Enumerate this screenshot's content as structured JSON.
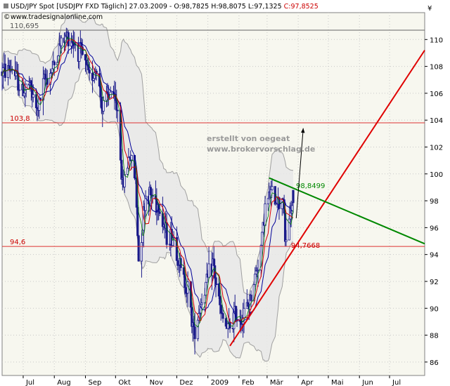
{
  "header": {
    "symbol_line": "USD/JPY Spot [USDJPY FXD  Täglich] 27.03.2009 - O:98,7825 H:98,8075 L:97,1325 ",
    "close_value": "C:97,8525",
    "website": "www.tradesignalonline.com"
  },
  "watermark": {
    "line1": "erstellt von oegeat",
    "line2": "www.brokervorschlag.de"
  },
  "colors": {
    "plot_bg": "#f7f7ef",
    "band_fill": "#e8e8e8",
    "band_line": "#a0a0a0",
    "candle": "#1a1a8a",
    "ma_red": "#dd0000",
    "ma_green": "#007a00",
    "ma_blue": "#000099",
    "level_line": "#dd3333",
    "top_level_line": "#666666",
    "trend_red": "#e00000",
    "trend_green": "#008800",
    "arrow": "#000000"
  },
  "chart_data": {
    "type": "candlestick",
    "instrument": "USD/JPY Spot",
    "date": "27.03.2009",
    "ohlc_last": {
      "open": 98.7825,
      "high": 98.8075,
      "low": 97.1325,
      "close": 97.8525
    },
    "y_axis": {
      "min": 85,
      "max": 112,
      "ticks": [
        "86",
        "88",
        "90",
        "92",
        "94",
        "96",
        "98",
        "100",
        "102",
        "104",
        "106",
        "108",
        "110"
      ]
    },
    "x_axis": {
      "start": "2008-06-10",
      "end": "2009-08-05",
      "ticks": [
        {
          "label": "Jul",
          "date": "2008-07-01"
        },
        {
          "label": "Aug",
          "date": "2008-08-01"
        },
        {
          "label": "Sep",
          "date": "2008-09-01"
        },
        {
          "label": "Okt",
          "date": "2008-10-01"
        },
        {
          "label": "Nov",
          "date": "2008-11-01"
        },
        {
          "label": "Dez",
          "date": "2008-12-01"
        },
        {
          "label": "2009",
          "date": "2009-01-01"
        },
        {
          "label": "Feb",
          "date": "2009-02-01"
        },
        {
          "label": "Mär",
          "date": "2009-03-01"
        },
        {
          "label": "Apr",
          "date": "2009-04-01"
        },
        {
          "label": "Mai",
          "date": "2009-05-01"
        },
        {
          "label": "Jun",
          "date": "2009-06-01"
        },
        {
          "label": "Jul",
          "date": "2009-07-01"
        }
      ]
    },
    "close_series": [
      [
        "2008-06-10",
        107.6
      ],
      [
        "2008-06-20",
        107.9
      ],
      [
        "2008-06-30",
        106.1
      ],
      [
        "2008-07-07",
        106.6
      ],
      [
        "2008-07-15",
        104.6
      ],
      [
        "2008-07-22",
        106.9
      ],
      [
        "2008-07-31",
        107.9
      ],
      [
        "2008-08-08",
        109.8
      ],
      [
        "2008-08-15",
        110.3
      ],
      [
        "2008-08-22",
        109.7
      ],
      [
        "2008-08-29",
        108.7
      ],
      [
        "2008-09-05",
        107.1
      ],
      [
        "2008-09-12",
        107.9
      ],
      [
        "2008-09-18",
        104.8
      ],
      [
        "2008-09-26",
        106.1
      ],
      [
        "2008-10-03",
        104.8
      ],
      [
        "2008-10-08",
        99.0
      ],
      [
        "2008-10-15",
        101.5
      ],
      [
        "2008-10-21",
        99.5
      ],
      [
        "2008-10-24",
        93.6
      ],
      [
        "2008-10-31",
        98.4
      ],
      [
        "2008-11-07",
        98.4
      ],
      [
        "2008-11-14",
        97.5
      ],
      [
        "2008-11-21",
        95.4
      ],
      [
        "2008-11-28",
        95.3
      ],
      [
        "2008-12-05",
        92.8
      ],
      [
        "2008-12-12",
        91.4
      ],
      [
        "2008-12-18",
        88.2
      ],
      [
        "2008-12-25",
        90.4
      ],
      [
        "2009-01-06",
        93.4
      ],
      [
        "2009-01-14",
        89.5
      ],
      [
        "2009-01-21",
        88.3
      ],
      [
        "2009-01-28",
        89.5
      ],
      [
        "2009-02-04",
        89.3
      ],
      [
        "2009-02-11",
        90.3
      ],
      [
        "2009-02-17",
        92.3
      ],
      [
        "2009-02-23",
        94.6
      ],
      [
        "2009-02-27",
        97.6
      ],
      [
        "2009-03-05",
        98.5
      ],
      [
        "2009-03-10",
        98.2
      ],
      [
        "2009-03-13",
        97.8
      ],
      [
        "2009-03-17",
        98.5
      ],
      [
        "2009-03-19",
        94.8
      ],
      [
        "2009-03-23",
        96.7
      ],
      [
        "2009-03-27",
        97.85
      ]
    ],
    "levels": [
      {
        "label": "110,695",
        "value": 110.695
      },
      {
        "label": "103,8",
        "value": 103.8
      },
      {
        "label": "94,6",
        "value": 94.6
      }
    ],
    "trendlines": [
      {
        "name": "support",
        "color": "red",
        "from": {
          "date": "2009-01-23",
          "value": 87.2
        },
        "to": {
          "date": "2009-08-05",
          "value": 109.2
        },
        "label": "94,7668",
        "label_date": "2009-03-22",
        "label_value": 94.7668
      },
      {
        "name": "resistance",
        "color": "green",
        "from": {
          "date": "2009-03-03",
          "value": 99.7
        },
        "to": {
          "date": "2009-08-05",
          "value": 94.8
        },
        "label": "98,8499",
        "label_date": "2009-03-27",
        "label_value": 98.8499
      }
    ],
    "arrow": {
      "from": {
        "date": "2009-03-30",
        "value": 96.7
      },
      "to": {
        "date": "2009-04-06",
        "value": 103.4
      }
    },
    "indicators": [
      "Bollinger Bands",
      "Moving Average (red)",
      "Moving Average (green)",
      "Moving Average (blue)"
    ],
    "grid": true
  }
}
